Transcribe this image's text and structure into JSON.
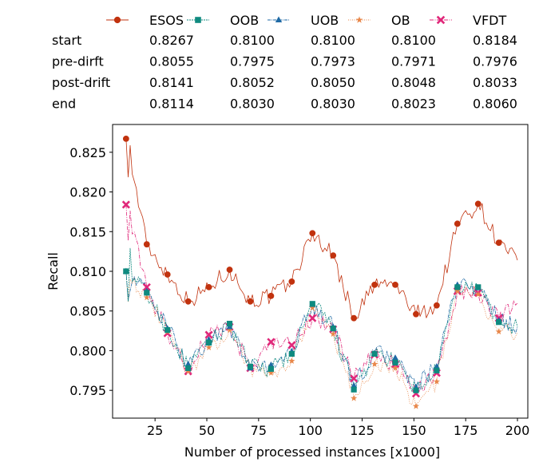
{
  "legend_table": {
    "series_names": [
      "ESOS",
      "OOB",
      "UOB",
      "OB",
      "VFDT"
    ],
    "rows": [
      {
        "label": "start",
        "values": [
          "0.8267",
          "0.8100",
          "0.8100",
          "0.8100",
          "0.8184"
        ]
      },
      {
        "label": "pre-dirft",
        "values": [
          "0.8055",
          "0.7975",
          "0.7973",
          "0.7971",
          "0.7976"
        ]
      },
      {
        "label": "post-drift",
        "values": [
          "0.8141",
          "0.8052",
          "0.8050",
          "0.8048",
          "0.8033"
        ]
      },
      {
        "label": "end",
        "values": [
          "0.8114",
          "0.8030",
          "0.8030",
          "0.8023",
          "0.8060"
        ]
      }
    ]
  },
  "chart_data": {
    "type": "line",
    "xlabel": "Number of processed instances [x1000]",
    "ylabel": "Recall",
    "xlim": [
      4.5,
      205
    ],
    "ylim": [
      0.7915,
      0.8285
    ],
    "xticks": [
      25,
      50,
      75,
      100,
      125,
      150,
      175,
      200
    ],
    "yticks": [
      0.795,
      0.8,
      0.805,
      0.81,
      0.815,
      0.82,
      0.825
    ],
    "ytick_labels": [
      "0.795",
      "0.800",
      "0.805",
      "0.810",
      "0.815",
      "0.820",
      "0.825"
    ],
    "grid": false,
    "legend_position": "top",
    "marker_x": [
      11,
      21,
      31,
      41,
      51,
      61,
      71,
      81,
      91,
      101,
      111,
      121,
      131,
      141,
      151,
      161,
      171,
      181,
      191
    ],
    "series": [
      {
        "name": "ESOS",
        "color": "#c1320e",
        "marker": "circle",
        "dash": "",
        "values": [
          0.8267,
          0.8134,
          0.8096,
          0.8062,
          0.808,
          0.8102,
          0.8062,
          0.8069,
          0.8087,
          0.8148,
          0.812,
          0.8041,
          0.8083,
          0.8083,
          0.8046,
          0.8057,
          0.816,
          0.8185,
          0.8136
        ],
        "end": 0.8114
      },
      {
        "name": "OOB",
        "color": "#0f8a7f",
        "marker": "square",
        "dash": "2,1",
        "values": [
          0.81,
          0.8073,
          0.8026,
          0.7978,
          0.801,
          0.8034,
          0.798,
          0.7977,
          0.7996,
          0.8059,
          0.8028,
          0.7951,
          0.7996,
          0.7985,
          0.795,
          0.7975,
          0.808,
          0.808,
          0.8036
        ],
        "end": 0.803
      },
      {
        "name": "UOB",
        "color": "#1f6aa5",
        "marker": "triangle",
        "dash": "4,1,1,1",
        "values": [
          0.81,
          0.8075,
          0.8028,
          0.7983,
          0.8014,
          0.803,
          0.7978,
          0.7982,
          0.7999,
          0.8058,
          0.803,
          0.7956,
          0.7997,
          0.7991,
          0.7954,
          0.798,
          0.8083,
          0.8079,
          0.8038
        ],
        "end": 0.803
      },
      {
        "name": "OB",
        "color": "#e8874a",
        "marker": "star",
        "dash": "1,1.5",
        "values": [
          0.81,
          0.8067,
          0.8024,
          0.7974,
          0.8004,
          0.8026,
          0.7978,
          0.7972,
          0.7987,
          0.8054,
          0.8021,
          0.794,
          0.7983,
          0.7978,
          0.793,
          0.7961,
          0.8075,
          0.8071,
          0.8024
        ],
        "end": 0.8023
      },
      {
        "name": "VFDT",
        "color": "#e0287a",
        "marker": "x",
        "dash": "5,1.5,1,1.5",
        "values": [
          0.8184,
          0.808,
          0.8022,
          0.7974,
          0.802,
          0.803,
          0.7978,
          0.8011,
          0.8007,
          0.8041,
          0.8027,
          0.7965,
          0.7995,
          0.7983,
          0.7946,
          0.7972,
          0.8075,
          0.8073,
          0.8041
        ],
        "end": 0.806
      }
    ]
  }
}
